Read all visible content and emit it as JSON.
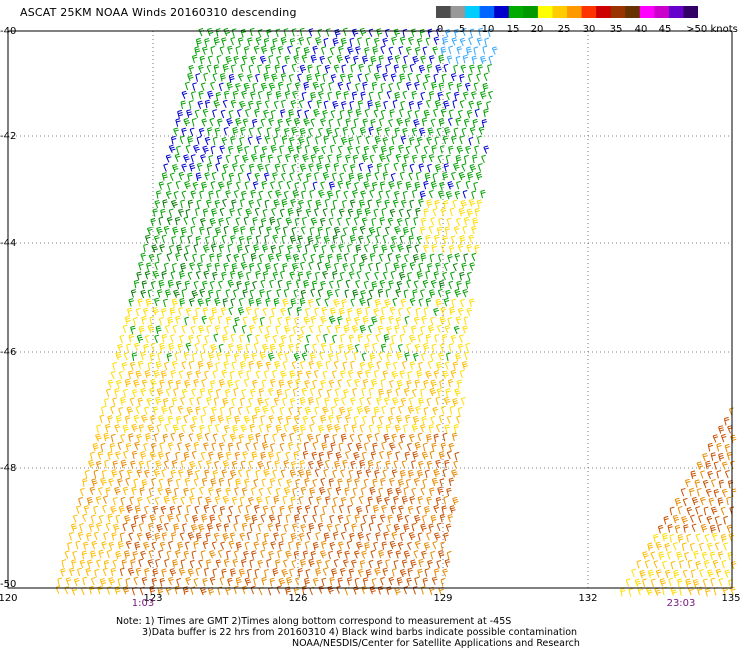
{
  "title": "ASCAT 25KM NOAA Winds 20160310 descending",
  "legend": {
    "labels": [
      "0",
      "5",
      "10",
      "15",
      "20",
      "25",
      "30",
      "35",
      "40",
      "45",
      ">50 knots"
    ],
    "colors": [
      "#4d4d4d",
      "#999999",
      "#00ccff",
      "#0066ff",
      "#0000cc",
      "#00aa00",
      "#009900",
      "#ffff00",
      "#ffcc00",
      "#ff9900",
      "#ff3300",
      "#cc0000",
      "#993300",
      "#663300",
      "#ff00ff",
      "#cc00cc",
      "#6600cc",
      "#330066"
    ]
  },
  "axes": {
    "lat_labels": [
      "-40",
      "-42",
      "-44",
      "-46",
      "-48",
      "-50"
    ],
    "lon_labels": [
      "120",
      "123",
      "126",
      "129",
      "132",
      "135"
    ],
    "times": [
      "1:03",
      "23:03"
    ]
  },
  "notes": {
    "line1": "Note: 1) Times are GMT 2)Times along bottom correspond to measurement at -45S",
    "line2": "3)Data buffer is 22 hrs from 20160310 4) Black wind barbs indicate possible contamination",
    "line3": "NOAA/NESDIS/Center for Satellite Applications and Research"
  },
  "wind_colors": {
    "blue": "#0000cc",
    "lightblue": "#33a8ff",
    "green": "#00a000",
    "darkgreen": "#007700",
    "yellow": "#ffdd00",
    "gold": "#ffbb00",
    "orange": "#e88a00",
    "darkorange": "#c85000",
    "brown": "#993300"
  }
}
